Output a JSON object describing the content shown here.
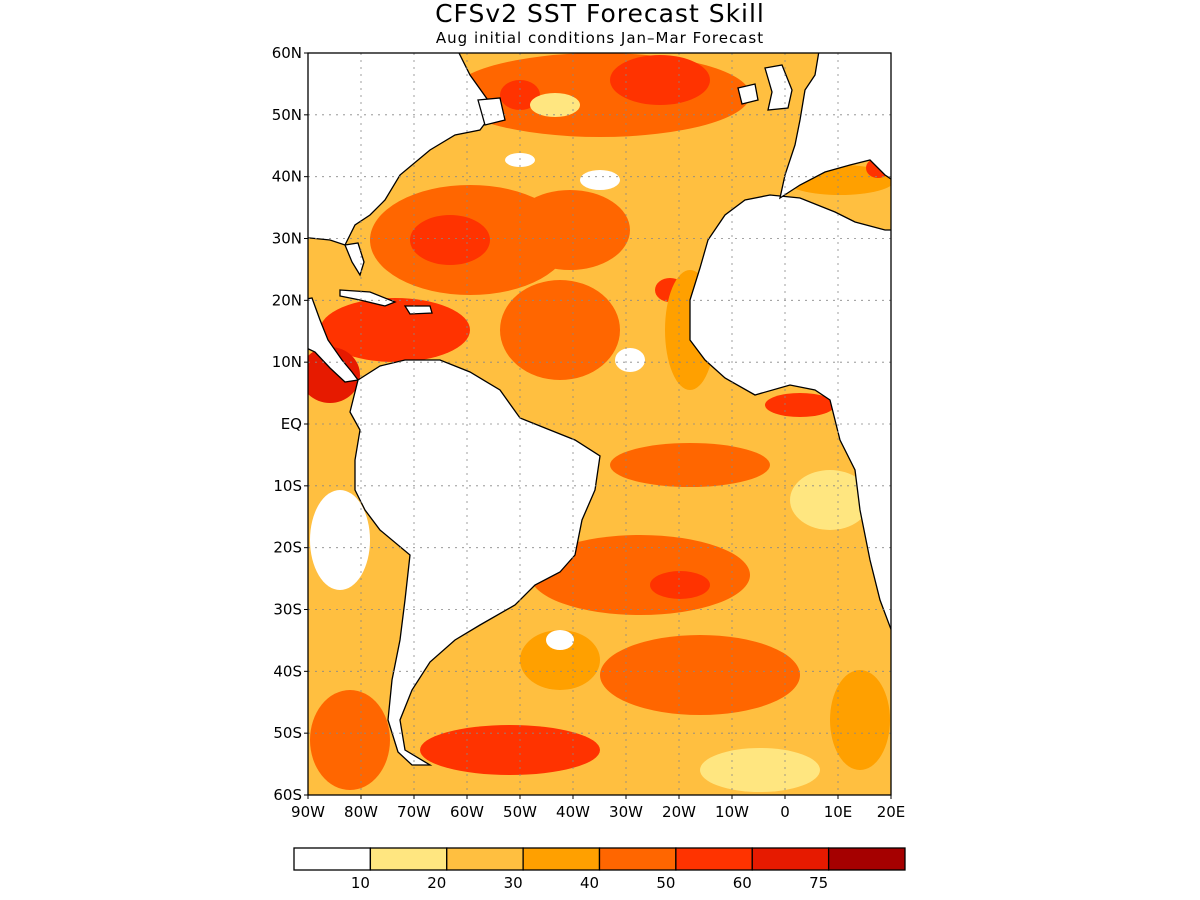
{
  "title": "CFSv2 SST Forecast Skill",
  "subtitle": "Aug initial conditions   Jan–Mar Forecast",
  "map": {
    "lon_range": [
      -90,
      20
    ],
    "lat_range": [
      -60,
      60
    ],
    "lat_labels": [
      "60N",
      "50N",
      "40N",
      "30N",
      "20N",
      "10N",
      "EQ",
      "10S",
      "20S",
      "30S",
      "40S",
      "50S",
      "60S"
    ],
    "lon_labels": [
      "90W",
      "80W",
      "70W",
      "60W",
      "50W",
      "40W",
      "30W",
      "20W",
      "10W",
      "0",
      "10E",
      "20E"
    ],
    "gridlines": true,
    "land_color": "#ffffff",
    "coastline_color": "#000000"
  },
  "colorbar": {
    "colors": [
      "#ffffff",
      "#ffe680",
      "#ffbf40",
      "#ffa000",
      "#ff6600",
      "#ff3300",
      "#e61a00",
      "#a50000"
    ],
    "labels": [
      "10",
      "20",
      "30",
      "40",
      "50",
      "60",
      "75"
    ]
  }
}
